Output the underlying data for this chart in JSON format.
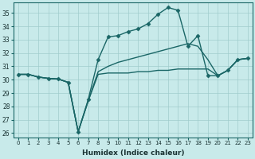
{
  "background_color": "#c8eaea",
  "grid_color": "#a0cccc",
  "line_color": "#1a6666",
  "xlabel": "Humidex (Indice chaleur)",
  "xlim": [
    -0.5,
    23.5
  ],
  "ylim": [
    25.7,
    35.8
  ],
  "yticks": [
    26,
    27,
    28,
    29,
    30,
    31,
    32,
    33,
    34,
    35
  ],
  "xticks": [
    0,
    1,
    2,
    3,
    4,
    5,
    6,
    7,
    8,
    9,
    10,
    11,
    12,
    13,
    14,
    15,
    16,
    17,
    18,
    19,
    20,
    21,
    22,
    23
  ],
  "series": [
    {
      "x": [
        0,
        1,
        2,
        3,
        4,
        5,
        6,
        7,
        8,
        9,
        10,
        11,
        12,
        13,
        14,
        15,
        16,
        17,
        18,
        19,
        20,
        21,
        22,
        23
      ],
      "y": [
        30.4,
        30.4,
        30.2,
        30.1,
        30.05,
        29.8,
        26.1,
        28.4,
        30.4,
        30.5,
        30.5,
        30.5,
        30.6,
        30.6,
        30.7,
        30.7,
        30.8,
        30.8,
        30.8,
        30.8,
        30.3,
        30.7,
        31.5,
        31.6
      ],
      "marker": null,
      "linewidth": 1.0
    },
    {
      "x": [
        0,
        1,
        2,
        3,
        4,
        5,
        6,
        7,
        8,
        9,
        10,
        11,
        12,
        13,
        14,
        15,
        16,
        17,
        18,
        19,
        20,
        21,
        22,
        23
      ],
      "y": [
        30.4,
        30.4,
        30.2,
        30.1,
        30.05,
        29.8,
        26.1,
        28.4,
        30.6,
        31.0,
        31.3,
        31.5,
        31.7,
        31.9,
        32.1,
        32.3,
        32.5,
        32.7,
        32.5,
        31.5,
        30.3,
        30.7,
        31.5,
        31.6
      ],
      "marker": null,
      "linewidth": 1.0
    },
    {
      "x": [
        0,
        1,
        2,
        3,
        4,
        5,
        6,
        7,
        8,
        9,
        10,
        11,
        12,
        13,
        14,
        15,
        16,
        17,
        18,
        19,
        20,
        21,
        22,
        23
      ],
      "y": [
        30.4,
        30.4,
        30.2,
        30.1,
        30.05,
        29.8,
        26.1,
        28.5,
        31.5,
        33.2,
        33.3,
        33.6,
        33.8,
        34.2,
        34.9,
        35.4,
        35.2,
        32.5,
        33.3,
        30.3,
        30.3,
        30.7,
        31.5,
        31.6
      ],
      "marker": "D",
      "markersize": 2.5,
      "linewidth": 1.0
    }
  ]
}
